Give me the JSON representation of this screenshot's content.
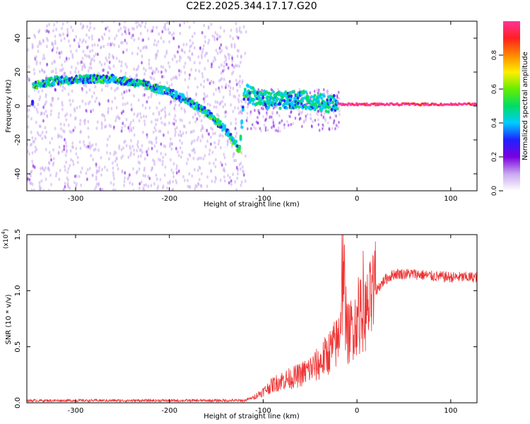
{
  "title": "C2E2.2025.344.17.17.G20",
  "colors": {
    "snr_line": "#ee3333",
    "axis": "#000000"
  },
  "chart_data": [
    {
      "type": "heatmap",
      "name": "spectrogram",
      "xlabel": "Height of straight line (km)",
      "ylabel": "Frequency (Hz)",
      "xlim": [
        -352,
        128
      ],
      "ylim": [
        -50,
        50
      ],
      "xticks": [
        -300,
        -200,
        -100,
        0,
        100
      ],
      "yticks": [
        -40,
        -20,
        0,
        20,
        40
      ],
      "colorbar": {
        "label": "Normalized spectral amplitude",
        "range": [
          0,
          1
        ],
        "ticks": [
          "0.0",
          "0.2",
          "0.4",
          "0.6",
          "0.8"
        ],
        "colormap": [
          "#ffffff",
          "#c8a8f0",
          "#7a00e0",
          "#2020ff",
          "#00ccff",
          "#00dd66",
          "#66ee00",
          "#ffee00",
          "#ff8800",
          "#ff2020",
          "#ff3399"
        ]
      },
      "ridge": {
        "description": "dominant frequency trace",
        "x": [
          -345,
          -320,
          -290,
          -260,
          -230,
          -200,
          -180,
          -160,
          -140,
          -125,
          -120,
          -100,
          -80,
          -60,
          -40,
          -20,
          0,
          50,
          100,
          128
        ],
        "y": [
          12,
          15,
          16,
          16,
          13,
          8,
          3,
          -4,
          -14,
          -26,
          8,
          4,
          3,
          4,
          2,
          1,
          1,
          1,
          1,
          1
        ]
      }
    },
    {
      "type": "line",
      "name": "snr",
      "xlabel": "Height of straight line (km)",
      "ylabel": "SNR (10 * v/v)",
      "multiplier": "(x10",
      "multiplier_exp": "4",
      "xlim": [
        -352,
        128
      ],
      "ylim": [
        0,
        1.5
      ],
      "xticks": [
        -300,
        -200,
        -100,
        0,
        100
      ],
      "yticks": [
        "0.0",
        "0.5",
        "1.0",
        "1.5"
      ],
      "series": [
        {
          "name": "SNR",
          "x": [
            -352,
            -120,
            -110,
            -100,
            -90,
            -80,
            -70,
            -60,
            -50,
            -40,
            -30,
            -20,
            -15,
            -10,
            0,
            10,
            20,
            30,
            40,
            60,
            80,
            100,
            128
          ],
          "values": [
            0.02,
            0.02,
            0.05,
            0.1,
            0.16,
            0.2,
            0.22,
            0.25,
            0.3,
            0.35,
            0.45,
            0.55,
            1.0,
            0.6,
            0.75,
            0.8,
            1.0,
            1.1,
            1.15,
            1.15,
            1.13,
            1.12,
            1.12
          ]
        }
      ]
    }
  ]
}
